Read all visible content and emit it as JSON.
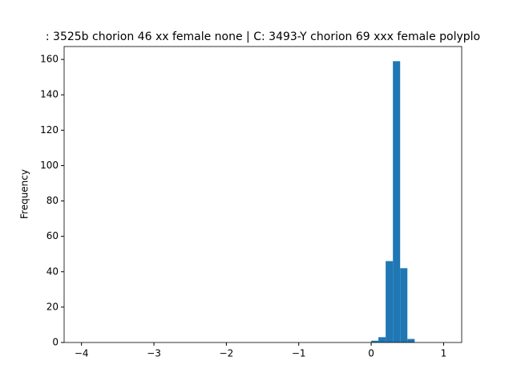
{
  "chart_data": {
    "type": "histogram",
    "title": ": 3525b chorion 46 xx female none | C: 3493-Y chorion 69 xxx female polyplo",
    "y_label": "Frequency",
    "color": "#1f77b4",
    "bins": [
      -4.0,
      -3.9,
      -3.8,
      -3.7,
      -3.6,
      -3.5,
      -3.4,
      -3.3,
      -3.2,
      -3.1,
      -3.0,
      -2.9,
      -2.8,
      -2.7,
      -2.6,
      -2.5,
      -2.4,
      -2.3,
      -2.2,
      -2.1,
      -2.0,
      -1.9,
      -1.8,
      -1.7,
      -1.6,
      -1.5,
      -1.4,
      -1.3,
      -1.2,
      -1.1,
      -1.0,
      -0.9,
      -0.8,
      -0.7,
      -0.6,
      -0.5,
      -0.4,
      -0.3,
      -0.2,
      -0.1,
      0.0,
      0.1,
      0.2,
      0.3,
      0.4,
      0.5,
      0.6,
      0.7,
      0.8,
      0.9,
      1.0
    ],
    "values": [
      0,
      0,
      0,
      0,
      0,
      0,
      0,
      0,
      0,
      0,
      0,
      0,
      0,
      0,
      0,
      0,
      0,
      0,
      0,
      0,
      0,
      0,
      0,
      0,
      0,
      0,
      0,
      0,
      0,
      0,
      0,
      0,
      0,
      0,
      0,
      0,
      0,
      0,
      0,
      0,
      1,
      3,
      46,
      159,
      42,
      2,
      0,
      0,
      0,
      0
    ],
    "xlim": [
      -4.24,
      1.25
    ],
    "ylim": [
      0,
      167.3
    ],
    "xticks": [
      {
        "value": -4,
        "label": "−4"
      },
      {
        "value": -3,
        "label": "−3"
      },
      {
        "value": -2,
        "label": "−2"
      },
      {
        "value": -1,
        "label": "−1"
      },
      0,
      1
    ],
    "yticks": [
      0,
      20,
      40,
      60,
      80,
      100,
      120,
      140,
      160
    ]
  }
}
